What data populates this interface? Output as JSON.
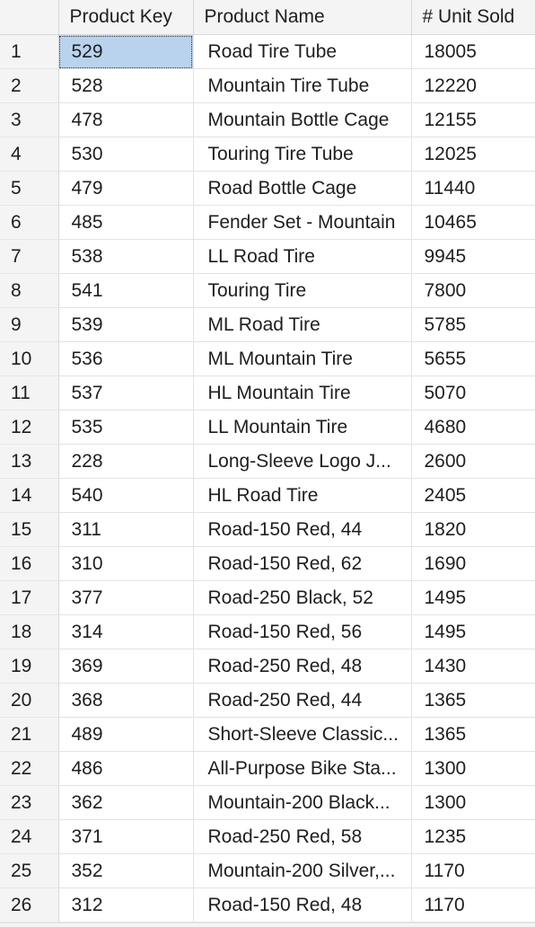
{
  "grid": {
    "columns": [
      {
        "label": ""
      },
      {
        "label": "Product Key"
      },
      {
        "label": "Product Name"
      },
      {
        "label": "# Unit Sold"
      }
    ],
    "selected_row_index": 0,
    "selected_column": "product_key",
    "rows": [
      {
        "n": "1",
        "key": "529",
        "name": "Road Tire Tube",
        "sold": "18005"
      },
      {
        "n": "2",
        "key": "528",
        "name": "Mountain Tire Tube",
        "sold": "12220"
      },
      {
        "n": "3",
        "key": "478",
        "name": "Mountain Bottle Cage",
        "sold": "12155"
      },
      {
        "n": "4",
        "key": "530",
        "name": "Touring Tire Tube",
        "sold": "12025"
      },
      {
        "n": "5",
        "key": "479",
        "name": "Road Bottle Cage",
        "sold": "11440"
      },
      {
        "n": "6",
        "key": "485",
        "name": "Fender Set - Mountain",
        "sold": "10465"
      },
      {
        "n": "7",
        "key": "538",
        "name": "LL Road Tire",
        "sold": "9945"
      },
      {
        "n": "8",
        "key": "541",
        "name": "Touring Tire",
        "sold": "7800"
      },
      {
        "n": "9",
        "key": "539",
        "name": "ML Road Tire",
        "sold": "5785"
      },
      {
        "n": "10",
        "key": "536",
        "name": "ML Mountain Tire",
        "sold": "5655"
      },
      {
        "n": "11",
        "key": "537",
        "name": "HL Mountain Tire",
        "sold": "5070"
      },
      {
        "n": "12",
        "key": "535",
        "name": "LL Mountain Tire",
        "sold": "4680"
      },
      {
        "n": "13",
        "key": "228",
        "name": "Long-Sleeve Logo J...",
        "sold": "2600"
      },
      {
        "n": "14",
        "key": "540",
        "name": "HL Road Tire",
        "sold": "2405"
      },
      {
        "n": "15",
        "key": "311",
        "name": "Road-150 Red, 44",
        "sold": "1820"
      },
      {
        "n": "16",
        "key": "310",
        "name": "Road-150 Red, 62",
        "sold": "1690"
      },
      {
        "n": "17",
        "key": "377",
        "name": "Road-250 Black, 52",
        "sold": "1495"
      },
      {
        "n": "18",
        "key": "314",
        "name": "Road-150 Red, 56",
        "sold": "1495"
      },
      {
        "n": "19",
        "key": "369",
        "name": "Road-250 Red, 48",
        "sold": "1430"
      },
      {
        "n": "20",
        "key": "368",
        "name": "Road-250 Red, 44",
        "sold": "1365"
      },
      {
        "n": "21",
        "key": "489",
        "name": "Short-Sleeve Classic...",
        "sold": "1365"
      },
      {
        "n": "22",
        "key": "486",
        "name": "All-Purpose Bike Sta...",
        "sold": "1300"
      },
      {
        "n": "23",
        "key": "362",
        "name": "Mountain-200 Black...",
        "sold": "1300"
      },
      {
        "n": "24",
        "key": "371",
        "name": "Road-250 Red, 58",
        "sold": "1235"
      },
      {
        "n": "25",
        "key": "352",
        "name": "Mountain-200 Silver,...",
        "sold": "1170"
      },
      {
        "n": "26",
        "key": "312",
        "name": "Road-150 Red, 48",
        "sold": "1170"
      }
    ]
  },
  "colors": {
    "header_bg": "#f4f4f4",
    "selection_bg": "#b9d3ee",
    "grid_line": "#e3e3e3"
  }
}
